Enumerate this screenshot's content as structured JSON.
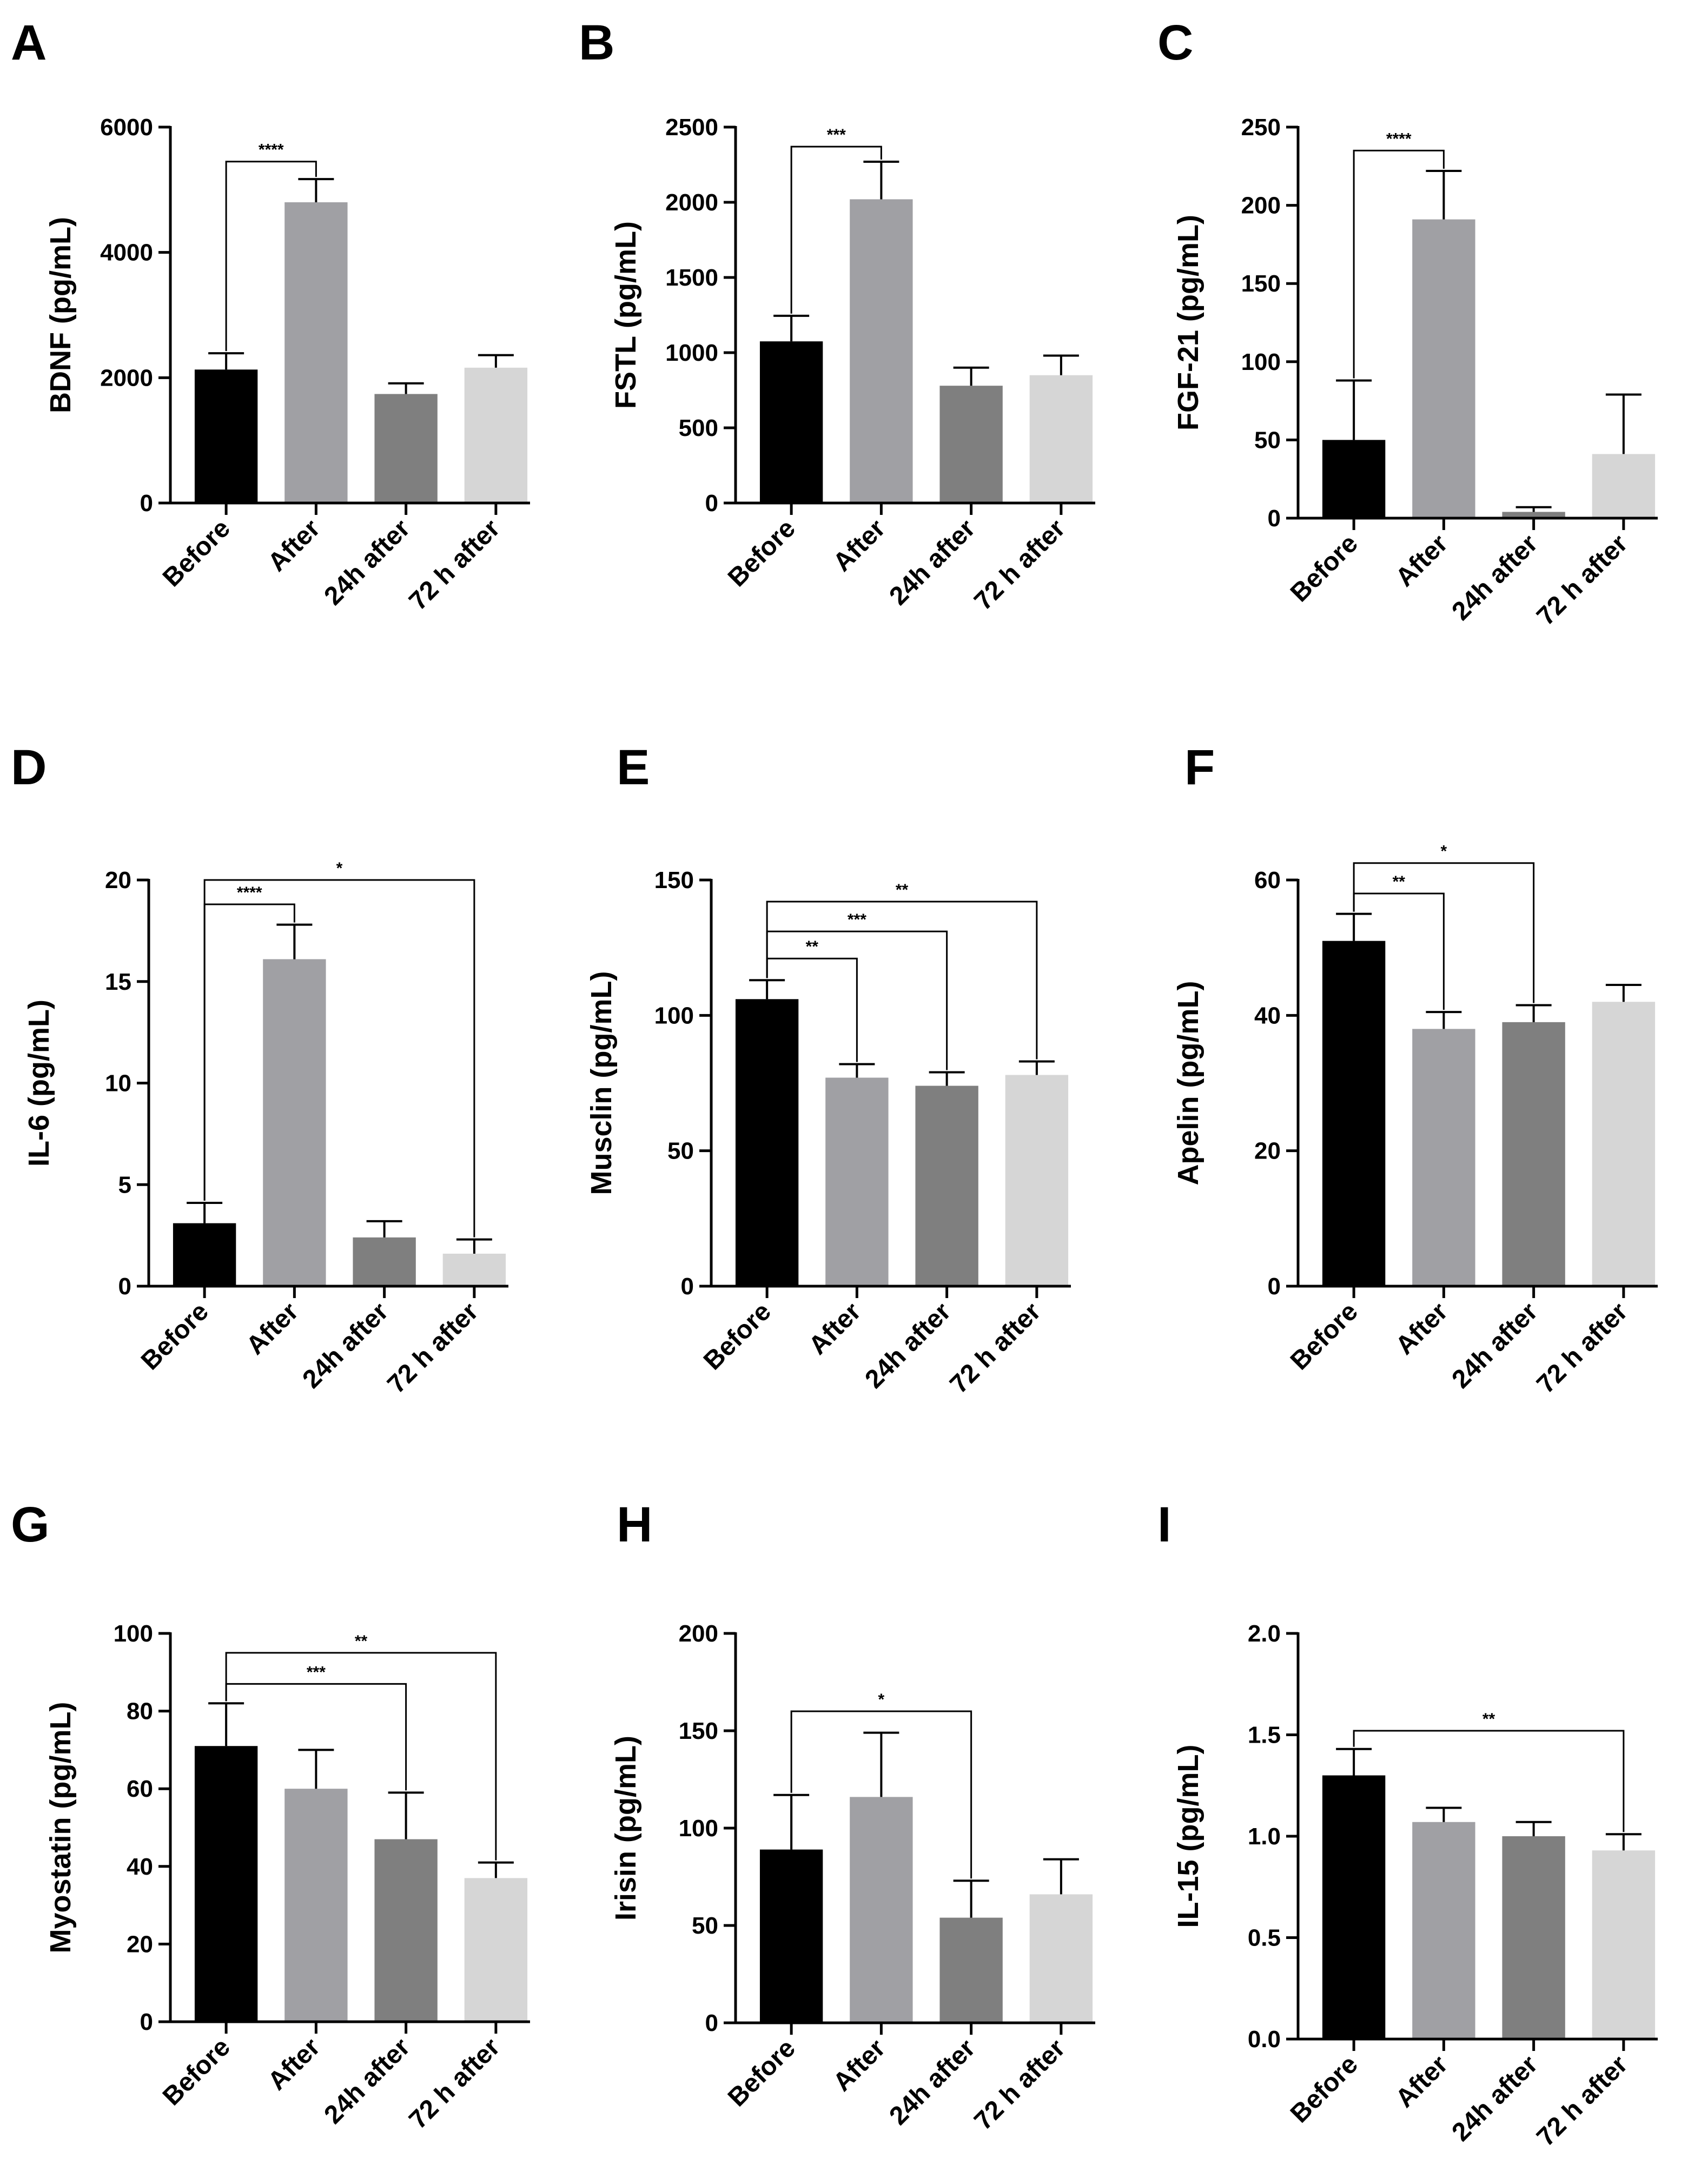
{
  "figure": {
    "categories": [
      "Before",
      "After",
      "24h after",
      "72 h after"
    ],
    "colors": [
      "#000000",
      "#a0a0a4",
      "#7f7f7f",
      "#d6d6d6"
    ],
    "panels": [
      {
        "letter": "A",
        "ylabel": "BDNF (pg/mL)",
        "ticks": [
          "0",
          "2000",
          "4000",
          "6000"
        ],
        "chart_data": {
          "type": "bar",
          "ylim": [
            0,
            6000
          ],
          "categories": [
            "Before",
            "After",
            "24h after",
            "72 h after"
          ],
          "values": [
            2130,
            4800,
            1740,
            2160
          ],
          "errors": [
            260,
            370,
            170,
            200
          ],
          "annotations": [
            {
              "from": 0,
              "to": 1,
              "label": "****",
              "y": 5450
            }
          ]
        }
      },
      {
        "letter": "B",
        "ylabel": "FSTL (pg/mL)",
        "ticks": [
          "0",
          "500",
          "1000",
          "1500",
          "2000",
          "2500"
        ],
        "chart_data": {
          "type": "bar",
          "ylim": [
            0,
            2500
          ],
          "categories": [
            "Before",
            "After",
            "24h after",
            "72 h after"
          ],
          "values": [
            1075,
            2020,
            780,
            850
          ],
          "errors": [
            170,
            250,
            120,
            130
          ],
          "annotations": [
            {
              "from": 0,
              "to": 1,
              "label": "***",
              "y": 2370
            }
          ]
        }
      },
      {
        "letter": "C",
        "ylabel": "FGF-21 (pg/mL)",
        "ticks": [
          "0",
          "50",
          "100",
          "150",
          "200",
          "250"
        ],
        "chart_data": {
          "type": "bar",
          "ylim": [
            0,
            250
          ],
          "categories": [
            "Before",
            "After",
            "24h after",
            "72 h after"
          ],
          "values": [
            50,
            191,
            4,
            41
          ],
          "errors": [
            38,
            31,
            3,
            38
          ],
          "annotations": [
            {
              "from": 0,
              "to": 1,
              "label": "****",
              "y": 235
            }
          ]
        }
      },
      {
        "letter": "D",
        "ylabel": "IL-6 (pg/mL)",
        "ticks": [
          "0",
          "5",
          "10",
          "15",
          "20"
        ],
        "chart_data": {
          "type": "bar",
          "ylim": [
            0,
            20
          ],
          "categories": [
            "Before",
            "After",
            "24h after",
            "72 h after"
          ],
          "values": [
            3.1,
            16.1,
            2.4,
            1.6
          ],
          "errors": [
            1.0,
            1.7,
            0.8,
            0.7
          ],
          "annotations": [
            {
              "from": 0,
              "to": 1,
              "label": "****",
              "y": 18.8
            },
            {
              "from": 0,
              "to": 3,
              "label": "*",
              "y": 20
            }
          ]
        }
      },
      {
        "letter": "E",
        "ylabel": "Musclin (pg/mL)",
        "ticks": [
          "0",
          "50",
          "100",
          "150"
        ],
        "chart_data": {
          "type": "bar",
          "ylim": [
            0,
            150
          ],
          "categories": [
            "Before",
            "After",
            "24h after",
            "72 h after"
          ],
          "values": [
            106,
            77,
            74,
            78
          ],
          "errors": [
            7,
            5,
            5,
            5
          ],
          "annotations": [
            {
              "from": 0,
              "to": 1,
              "label": "**",
              "y": 121
            },
            {
              "from": 0,
              "to": 2,
              "label": "***",
              "y": 131
            },
            {
              "from": 0,
              "to": 3,
              "label": "**",
              "y": 142
            }
          ]
        }
      },
      {
        "letter": "F",
        "ylabel": "Apelin (pg/mL)",
        "ticks": [
          "0",
          "20",
          "40",
          "60"
        ],
        "chart_data": {
          "type": "bar",
          "ylim": [
            0,
            60
          ],
          "categories": [
            "Before",
            "After",
            "24h after",
            "72 h after"
          ],
          "values": [
            51,
            38,
            39,
            42
          ],
          "errors": [
            4,
            2.5,
            2.5,
            2.5
          ],
          "annotations": [
            {
              "from": 0,
              "to": 1,
              "label": "**",
              "y": 58
            },
            {
              "from": 0,
              "to": 2,
              "label": "*",
              "y": 62.5
            }
          ]
        }
      },
      {
        "letter": "G",
        "ylabel": "Myostatin (pg/mL)",
        "ticks": [
          "0",
          "20",
          "40",
          "60",
          "80",
          "100"
        ],
        "chart_data": {
          "type": "bar",
          "ylim": [
            0,
            100
          ],
          "categories": [
            "Before",
            "After",
            "24h after",
            "72 h after"
          ],
          "values": [
            71,
            60,
            47,
            37
          ],
          "errors": [
            11,
            10,
            12,
            4
          ],
          "annotations": [
            {
              "from": 0,
              "to": 2,
              "label": "***",
              "y": 87
            },
            {
              "from": 0,
              "to": 3,
              "label": "**",
              "y": 95
            }
          ]
        }
      },
      {
        "letter": "H",
        "ylabel": "Irisin (pg/mL)",
        "ticks": [
          "0",
          "50",
          "100",
          "150",
          "200"
        ],
        "chart_data": {
          "type": "bar",
          "ylim": [
            0,
            200
          ],
          "categories": [
            "Before",
            "After",
            "24h after",
            "72 h after"
          ],
          "values": [
            89,
            116,
            54,
            66
          ],
          "errors": [
            28,
            33,
            19,
            18
          ],
          "annotations": [
            {
              "from": 0,
              "to": 2,
              "label": "*",
              "y": 160
            }
          ]
        }
      },
      {
        "letter": "I",
        "ylabel": "IL-15 (pg/mL)",
        "ticks": [
          "0.0",
          "0.5",
          "1.0",
          "1.5",
          "2.0"
        ],
        "chart_data": {
          "type": "bar",
          "ylim": [
            0,
            2
          ],
          "categories": [
            "Before",
            "After",
            "24h after",
            "72 h after"
          ],
          "values": [
            1.3,
            1.07,
            1.0,
            0.93
          ],
          "errors": [
            0.13,
            0.07,
            0.07,
            0.08
          ],
          "annotations": [
            {
              "from": 0,
              "to": 3,
              "label": "**",
              "y": 1.52
            }
          ]
        }
      }
    ]
  }
}
